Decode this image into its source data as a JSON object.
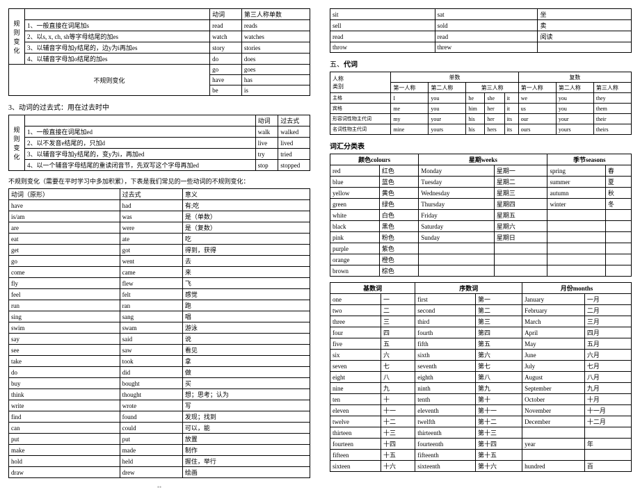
{
  "left": {
    "t1": {
      "h": [
        "动词",
        "第三人称单数"
      ],
      "sideLabel": "规则变化",
      "rows": [
        [
          "1、一般直接在词尾加s",
          "read",
          "reads"
        ],
        [
          "2、以s, x, ch, sh等字母结尾的加es",
          "watch",
          "watches"
        ],
        [
          "3、以辅音字母加y结尾的，边y为i再加es",
          "story",
          "stories"
        ],
        [
          "4、以辅音字母加o结尾的加es",
          "do",
          "does"
        ]
      ],
      "irregHeader": "不规则变化",
      "irreg": [
        [
          "go",
          "goes"
        ],
        [
          "have",
          "has"
        ],
        [
          "be",
          "is"
        ]
      ]
    },
    "s3": "3、动词的过去式：用在过去时中",
    "t2": {
      "h": [
        "动词",
        "过去式"
      ],
      "sideLabel": "规则变化",
      "rows": [
        [
          "1、一般直接在词尾加ed",
          "walk",
          "walked"
        ],
        [
          "2、以不发音e结尾的，只加d",
          "live",
          "lived"
        ],
        [
          "3、以辅音字母加y结尾的，变y为i，再加ed",
          "try",
          "tried"
        ],
        [
          "4、以一个辅音字母结尾的重读闭音节，先双写这个字母再加ed",
          "stop",
          "stopped"
        ]
      ]
    },
    "note": "不规则变化（需要在平时学习中多加积累），下表是我们常见的一些动词的不规则变化：",
    "t3": {
      "h": [
        "动词（原形）",
        "过去式",
        "意义"
      ],
      "rows": [
        [
          "have",
          "had",
          "有;吃"
        ],
        [
          "is/am",
          "was",
          "是（单数）"
        ],
        [
          "are",
          "were",
          "是（复数）"
        ],
        [
          "eat",
          "ate",
          "吃"
        ],
        [
          "get",
          "got",
          "得到，获得"
        ],
        [
          "go",
          "went",
          "去"
        ],
        [
          "come",
          "came",
          "来"
        ],
        [
          "fly",
          "flew",
          "飞"
        ],
        [
          "feel",
          "felt",
          "感觉"
        ],
        [
          "run",
          "ran",
          "跑"
        ],
        [
          "sing",
          "sang",
          "唱"
        ],
        [
          "swim",
          "swam",
          "游泳"
        ],
        [
          "say",
          "said",
          "说"
        ],
        [
          "see",
          "saw",
          "看见"
        ],
        [
          "take",
          "took",
          "拿"
        ],
        [
          "do",
          "did",
          "做"
        ],
        [
          "buy",
          "bought",
          "买"
        ],
        [
          "think",
          "thought",
          "想；思考；认为"
        ],
        [
          "write",
          "wrote",
          "写"
        ],
        [
          "find",
          "found",
          "发现；找到"
        ],
        [
          "can",
          "could",
          "可以，能"
        ],
        [
          "put",
          "put",
          "放置"
        ],
        [
          "make",
          "made",
          "制作"
        ],
        [
          "hold",
          "held",
          "握住，举行"
        ],
        [
          "draw",
          "drew",
          "绘画"
        ]
      ]
    }
  },
  "right": {
    "t4": {
      "rows": [
        [
          "sit",
          "sat",
          "坐"
        ],
        [
          "sell",
          "sold",
          "卖"
        ],
        [
          "read",
          "read",
          "阅读"
        ],
        [
          "throw",
          "threw",
          ""
        ]
      ]
    },
    "s5": "五、代词",
    "t5": {
      "topH": [
        "单数",
        "复数"
      ],
      "h2a": "人称",
      "h2b": "类别",
      "inner": [
        "第一人称",
        "第二人称",
        "第三人称",
        "第一人称",
        "第二人称",
        "第三人称"
      ],
      "rows": [
        [
          "主格",
          "I",
          "you",
          "he",
          "she",
          "it",
          "we",
          "you",
          "they"
        ],
        [
          "宾格",
          "me",
          "you",
          "him",
          "her",
          "it",
          "us",
          "you",
          "them"
        ],
        [
          "形容词性物主代词",
          "my",
          "your",
          "his",
          "her",
          "its",
          "our",
          "your",
          "their"
        ],
        [
          "名词性物主代词",
          "mine",
          "yours",
          "his",
          "hers",
          "its",
          "ours",
          "yours",
          "theirs"
        ]
      ]
    },
    "vocabTitle": "词汇分类表",
    "t6": {
      "h": [
        "颜色colours",
        "星期weeks",
        "季节seasons"
      ],
      "rows": [
        [
          "red",
          "红色",
          "Monday",
          "星期一",
          "spring",
          "春"
        ],
        [
          "blue",
          "蓝色",
          "Tuesday",
          "星期二",
          "summer",
          "夏"
        ],
        [
          "yellow",
          "黄色",
          "Wednesday",
          "星期三",
          "autumn",
          "秋"
        ],
        [
          "green",
          "绿色",
          "Thursday",
          "星期四",
          "winter",
          "冬"
        ],
        [
          "white",
          "白色",
          "Friday",
          "星期五",
          "",
          ""
        ],
        [
          "black",
          "黑色",
          "Saturday",
          "星期六",
          "",
          ""
        ],
        [
          "pink",
          "粉色",
          "Sunday",
          "星期日",
          "",
          ""
        ],
        [
          "purple",
          "紫色",
          "",
          "",
          "",
          ""
        ],
        [
          "orange",
          "橙色",
          "",
          "",
          "",
          ""
        ],
        [
          "brown",
          "棕色",
          "",
          "",
          "",
          ""
        ]
      ]
    },
    "t7": {
      "h": [
        "基数词",
        "序数词",
        "月份months"
      ],
      "rows": [
        [
          "one",
          "一",
          "first",
          "第一",
          "January",
          "一月"
        ],
        [
          "two",
          "二",
          "second",
          "第二",
          "February",
          "二月"
        ],
        [
          "three",
          "三",
          "third",
          "第三",
          "March",
          "三月"
        ],
        [
          "four",
          "四",
          "fourth",
          "第四",
          "April",
          "四月"
        ],
        [
          "five",
          "五",
          "fifth",
          "第五",
          "May",
          "五月"
        ],
        [
          "six",
          "六",
          "sixth",
          "第六",
          "June",
          "六月"
        ],
        [
          "seven",
          "七",
          "seventh",
          "第七",
          "July",
          "七月"
        ],
        [
          "eight",
          "八",
          "eighth",
          "第八",
          "August",
          "八月"
        ],
        [
          "nine",
          "九",
          "ninth",
          "第九",
          "September",
          "九月"
        ],
        [
          "ten",
          "十",
          "tenth",
          "第十",
          "October",
          "十月"
        ],
        [
          "eleven",
          "十一",
          "eleventh",
          "第十一",
          "November",
          "十一月"
        ],
        [
          "twelve",
          "十二",
          "twelfth",
          "第十二",
          "December",
          "十二月"
        ],
        [
          "thirteen",
          "十三",
          "thirteenth",
          "第十三",
          "",
          ""
        ],
        [
          "fourteen",
          "十四",
          "fourteenth",
          "第十四",
          "year",
          "年"
        ],
        [
          "fifteen",
          "十五",
          "fifteenth",
          "第十五",
          "",
          ""
        ],
        [
          "sixteen",
          "十六",
          "sixteenth",
          "第十六",
          "hundred",
          "百"
        ]
      ]
    }
  }
}
